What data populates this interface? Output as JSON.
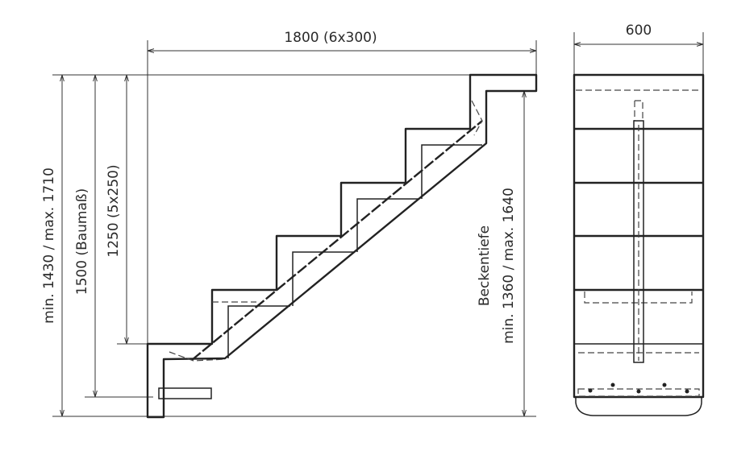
{
  "side_view": {
    "width_label": "1800 (6x300)",
    "total_height_label": "min. 1430 / max. 1710",
    "construction_height_label": "1500 (Baumaß)",
    "step_height_label": "1250 (5x250)",
    "pool_depth_title": "Beckentiefe",
    "pool_depth_label": "min. 1360 / max. 1640"
  },
  "front_view": {
    "width_label": "600"
  }
}
